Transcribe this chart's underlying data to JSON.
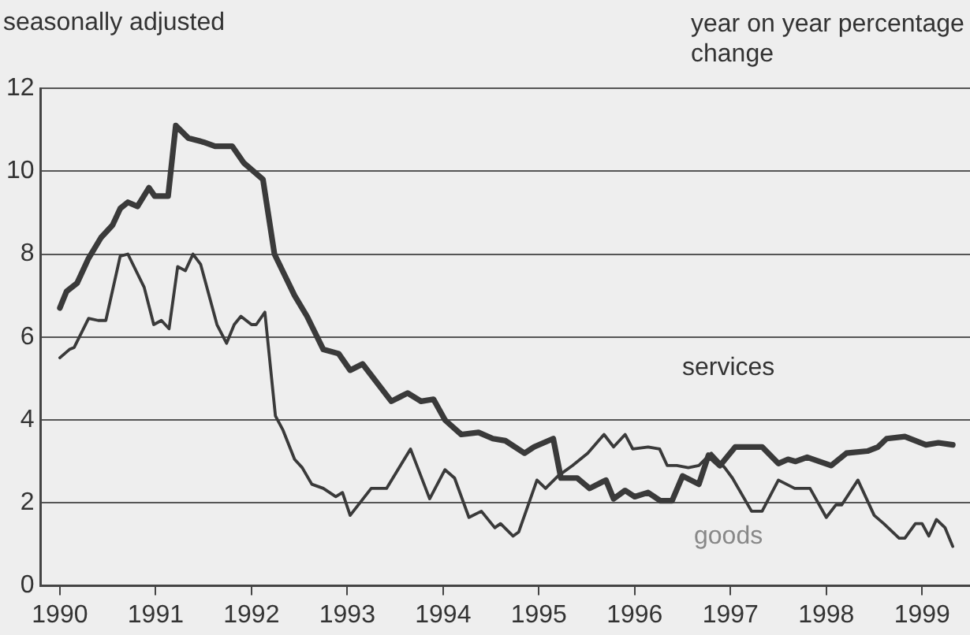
{
  "chart_data": {
    "type": "line",
    "subtitle": "seasonally adjusted",
    "ylabel": "year on year percentage change",
    "xlim": [
      1989.8,
      1999.5
    ],
    "xticks": [
      1990,
      1991,
      1992,
      1993,
      1994,
      1995,
      1996,
      1997,
      1998,
      1999
    ],
    "ylim": [
      0,
      12
    ],
    "yticks": [
      0,
      2,
      4,
      6,
      8,
      10,
      12
    ],
    "grid": "y",
    "legend": false,
    "marker": "none",
    "line_style": "solid",
    "series": [
      {
        "name": "services",
        "color": "#3a3a3a",
        "x": [
          1990.0,
          1990.07,
          1990.18,
          1990.3,
          1990.43,
          1990.55,
          1990.63,
          1990.71,
          1990.81,
          1990.93,
          1990.99,
          1991.13,
          1991.21,
          1991.34,
          1991.5,
          1991.62,
          1991.8,
          1991.92,
          1992.12,
          1992.24,
          1992.45,
          1992.58,
          1992.75,
          1992.91,
          1993.03,
          1993.16,
          1993.46,
          1993.63,
          1993.77,
          1993.9,
          1994.02,
          1994.19,
          1994.37,
          1994.52,
          1994.65,
          1994.85,
          1994.95,
          1995.15,
          1995.23,
          1995.4,
          1995.53,
          1995.7,
          1995.78,
          1995.9,
          1996.0,
          1996.14,
          1996.27,
          1996.39,
          1996.5,
          1996.67,
          1996.77,
          1996.89,
          1997.05,
          1997.33,
          1997.5,
          1997.6,
          1997.68,
          1997.8,
          1998.05,
          1998.21,
          1998.43,
          1998.54,
          1998.63,
          1998.82,
          1999.04,
          1999.17,
          1999.32
        ],
        "values": [
          6.7,
          7.1,
          7.3,
          7.9,
          8.4,
          8.7,
          9.1,
          9.25,
          9.15,
          9.6,
          9.4,
          9.4,
          11.1,
          10.8,
          10.7,
          10.6,
          10.6,
          10.2,
          9.8,
          8.0,
          7.0,
          6.5,
          5.7,
          5.6,
          5.2,
          5.35,
          4.45,
          4.65,
          4.45,
          4.5,
          4.0,
          3.65,
          3.7,
          3.55,
          3.5,
          3.2,
          3.35,
          3.55,
          2.6,
          2.6,
          2.35,
          2.55,
          2.1,
          2.3,
          2.15,
          2.25,
          2.05,
          2.05,
          2.65,
          2.45,
          3.15,
          2.9,
          3.35,
          3.35,
          2.95,
          3.05,
          3.0,
          3.1,
          2.9,
          3.2,
          3.25,
          3.35,
          3.55,
          3.6,
          3.4,
          3.45,
          3.4
        ]
      },
      {
        "name": "goods",
        "color": "#3a3a3a",
        "x": [
          1990.0,
          1990.1,
          1990.15,
          1990.3,
          1990.4,
          1990.48,
          1990.63,
          1990.71,
          1990.88,
          1990.98,
          1991.06,
          1991.14,
          1991.23,
          1991.31,
          1991.39,
          1991.47,
          1991.64,
          1991.74,
          1991.82,
          1991.89,
          1992.0,
          1992.05,
          1992.14,
          1992.25,
          1992.33,
          1992.45,
          1992.53,
          1992.63,
          1992.75,
          1992.88,
          1992.95,
          1993.03,
          1993.25,
          1993.41,
          1993.66,
          1993.86,
          1994.02,
          1994.12,
          1994.27,
          1994.4,
          1994.54,
          1994.6,
          1994.73,
          1994.79,
          1994.98,
          1995.07,
          1995.2,
          1995.35,
          1995.51,
          1995.68,
          1995.78,
          1995.9,
          1995.98,
          1996.14,
          1996.26,
          1996.34,
          1996.44,
          1996.56,
          1996.67,
          1996.8,
          1996.94,
          1997.02,
          1997.22,
          1997.33,
          1997.5,
          1997.67,
          1997.83,
          1998.0,
          1998.1,
          1998.16,
          1998.33,
          1998.5,
          1998.6,
          1998.76,
          1998.82,
          1998.93,
          1999.0,
          1999.07,
          1999.15,
          1999.24,
          1999.32
        ],
        "values": [
          5.5,
          5.7,
          5.75,
          6.45,
          6.4,
          6.4,
          7.95,
          8.0,
          7.2,
          6.3,
          6.4,
          6.2,
          7.7,
          7.6,
          8.0,
          7.75,
          6.3,
          5.85,
          6.3,
          6.5,
          6.3,
          6.3,
          6.6,
          4.1,
          3.75,
          3.05,
          2.85,
          2.45,
          2.35,
          2.15,
          2.25,
          1.7,
          2.35,
          2.35,
          3.3,
          2.1,
          2.8,
          2.6,
          1.65,
          1.8,
          1.4,
          1.5,
          1.2,
          1.3,
          2.55,
          2.35,
          2.65,
          2.9,
          3.2,
          3.65,
          3.35,
          3.65,
          3.3,
          3.35,
          3.3,
          2.9,
          2.9,
          2.85,
          2.9,
          3.2,
          2.85,
          2.6,
          1.8,
          1.8,
          2.55,
          2.35,
          2.35,
          1.65,
          1.95,
          1.95,
          2.55,
          1.7,
          1.5,
          1.15,
          1.15,
          1.5,
          1.5,
          1.2,
          1.6,
          1.4,
          0.95
        ]
      }
    ]
  }
}
